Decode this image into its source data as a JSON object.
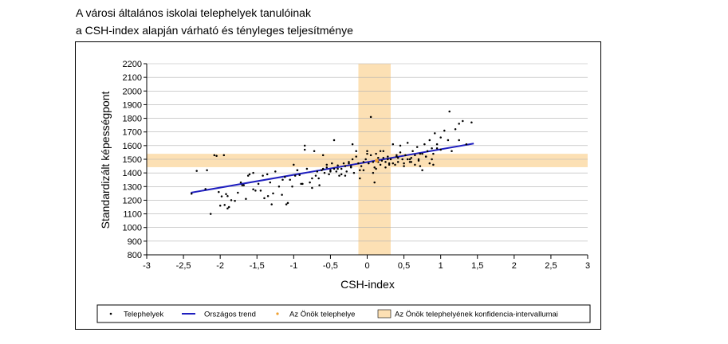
{
  "title_line1": "A városi általános iskolai telephelyek tanulóinak",
  "title_line2": "a CSH-index alapján várható és tényleges teljesítménye",
  "chart_data": {
    "type": "scatter",
    "xlabel": "CSH-index",
    "ylabel": "Standardizált képességpont",
    "xlim": [
      -3,
      3
    ],
    "ylim": [
      800,
      2200
    ],
    "xticks": [
      -3,
      -2.5,
      -2,
      -1.5,
      -1,
      -0.5,
      0,
      0.5,
      1,
      1.5,
      2,
      2.5,
      3
    ],
    "xtick_labels": [
      "-3",
      "-2,5",
      "-2",
      "-1,5",
      "-1",
      "-0,5",
      "0",
      "0,5",
      "1",
      "1,5",
      "2",
      "2,5",
      "3"
    ],
    "yticks": [
      800,
      900,
      1000,
      1100,
      1200,
      1300,
      1400,
      1500,
      1600,
      1700,
      1800,
      1900,
      2000,
      2100,
      2200
    ],
    "grid": "horizontal",
    "legend_position": "bottom",
    "legend": [
      "Telephelyek",
      "Országos trend",
      "Az Önök telephelye",
      "Az Önök telephelyének konfidencia-intervallumai"
    ],
    "colors": {
      "points": "#000000",
      "trend": "#1f1fbf",
      "own_site": "#f0a030",
      "confidence": "#fce0b4"
    },
    "trend_line": {
      "x": [
        -2.4,
        1.45
      ],
      "y": [
        1255,
        1615
      ]
    },
    "own_site": {
      "x": 0.13,
      "y": 1490
    },
    "confidence_x": [
      -0.12,
      0.32
    ],
    "confidence_y": [
      1442,
      1540
    ],
    "series": [
      {
        "name": "Telephelyek",
        "x": [
          -2.39,
          -2.32,
          -2.2,
          -2.13,
          -2.08,
          -2.02,
          -1.98,
          -1.94,
          -1.92,
          -1.88,
          -1.85,
          -1.8,
          -1.76,
          -1.72,
          -1.68,
          -1.65,
          -1.6,
          -1.55,
          -1.52,
          -1.48,
          -1.45,
          -1.4,
          -1.36,
          -1.32,
          -1.28,
          -1.25,
          -1.2,
          -1.16,
          -1.12,
          -1.08,
          -1.05,
          -1.02,
          -0.98,
          -0.95,
          -0.92,
          -0.88,
          -0.85,
          -0.82,
          -0.78,
          -0.75,
          -0.72,
          -0.68,
          -0.65,
          -0.62,
          -0.6,
          -0.58,
          -0.55,
          -0.52,
          -0.5,
          -0.48,
          -0.45,
          -0.42,
          -0.4,
          -0.38,
          -0.35,
          -0.32,
          -0.3,
          -0.28,
          -0.25,
          -0.22,
          -0.2,
          -0.18,
          -0.15,
          -0.12,
          -0.1,
          -0.08,
          -0.05,
          -0.02,
          0.0,
          0.02,
          0.05,
          0.08,
          0.1,
          0.12,
          0.15,
          0.18,
          0.2,
          0.22,
          0.25,
          0.28,
          0.3,
          0.32,
          0.35,
          0.38,
          0.4,
          0.42,
          0.45,
          0.48,
          0.5,
          0.52,
          0.55,
          0.58,
          0.6,
          0.62,
          0.65,
          0.68,
          0.7,
          0.72,
          0.75,
          0.78,
          0.8,
          0.82,
          0.85,
          0.88,
          0.9,
          0.92,
          0.95,
          1.0,
          1.05,
          1.1,
          1.15,
          1.2,
          1.25,
          1.3,
          1.35,
          1.42,
          -2.05,
          -1.95,
          -1.7,
          -1.35,
          -1.0,
          -0.85,
          -0.7,
          -0.6,
          -0.45,
          -0.3,
          -0.2,
          -0.1,
          0.05,
          0.1,
          0.18,
          0.25,
          0.35,
          0.45,
          0.55,
          0.65,
          0.75,
          0.85,
          0.95,
          1.12,
          -2.18,
          -2.0,
          -1.9,
          -1.62,
          -1.42,
          -1.15,
          -0.95,
          -0.75,
          -0.55,
          -0.4,
          -0.25,
          -0.15,
          0.0,
          0.08,
          0.15,
          0.22,
          0.3,
          0.4,
          0.5,
          0.6,
          0.7,
          0.8,
          0.9,
          1.0,
          1.25,
          -1.9,
          -1.55,
          -1.3,
          -1.1,
          -0.9,
          -0.66,
          -0.5,
          -0.35,
          -0.22,
          -0.05,
          0.12,
          0.28,
          0.42,
          0.58,
          0.72,
          0.88
        ],
        "y": [
          1248,
          1415,
          1282,
          1100,
          1530,
          1260,
          1228,
          1165,
          1245,
          1150,
          1200,
          1195,
          1255,
          1330,
          1310,
          1210,
          1390,
          1400,
          1270,
          1320,
          1270,
          1215,
          1390,
          1330,
          1250,
          1410,
          1300,
          1240,
          1370,
          1180,
          1350,
          1300,
          1380,
          1420,
          1385,
          1320,
          1570,
          1430,
          1330,
          1360,
          1560,
          1410,
          1310,
          1420,
          1530,
          1400,
          1440,
          1390,
          1410,
          1470,
          1430,
          1410,
          1455,
          1380,
          1430,
          1470,
          1450,
          1410,
          1480,
          1440,
          1500,
          1400,
          1520,
          1470,
          1360,
          1450,
          1420,
          1500,
          1560,
          1470,
          1530,
          1480,
          1440,
          1540,
          1510,
          1460,
          1490,
          1560,
          1480,
          1520,
          1470,
          1500,
          1610,
          1460,
          1520,
          1480,
          1550,
          1500,
          1470,
          1530,
          1620,
          1500,
          1480,
          1560,
          1530,
          1590,
          1500,
          1450,
          1540,
          1610,
          1520,
          1560,
          1470,
          1580,
          1540,
          1690,
          1610,
          1570,
          1710,
          1640,
          1560,
          1720,
          1640,
          1780,
          1610,
          1770,
          1525,
          1530,
          1310,
          1230,
          1460,
          1600,
          1380,
          1430,
          1640,
          1380,
          1610,
          1420,
          1810,
          1330,
          1560,
          1440,
          1470,
          1600,
          1500,
          1460,
          1420,
          1640,
          1580,
          1850,
          1420,
          1160,
          1140,
          1380,
          1380,
          1350,
          1420,
          1290,
          1460,
          1430,
          1470,
          1560,
          1540,
          1400,
          1480,
          1510,
          1460,
          1530,
          1450,
          1510,
          1490,
          1520,
          1460,
          1660,
          1760,
          1230,
          1280,
          1170,
          1170,
          1320,
          1360,
          1420,
          1390,
          1450,
          1480,
          1430,
          1500,
          1510,
          1480,
          1540,
          1500
        ]
      }
    ]
  }
}
